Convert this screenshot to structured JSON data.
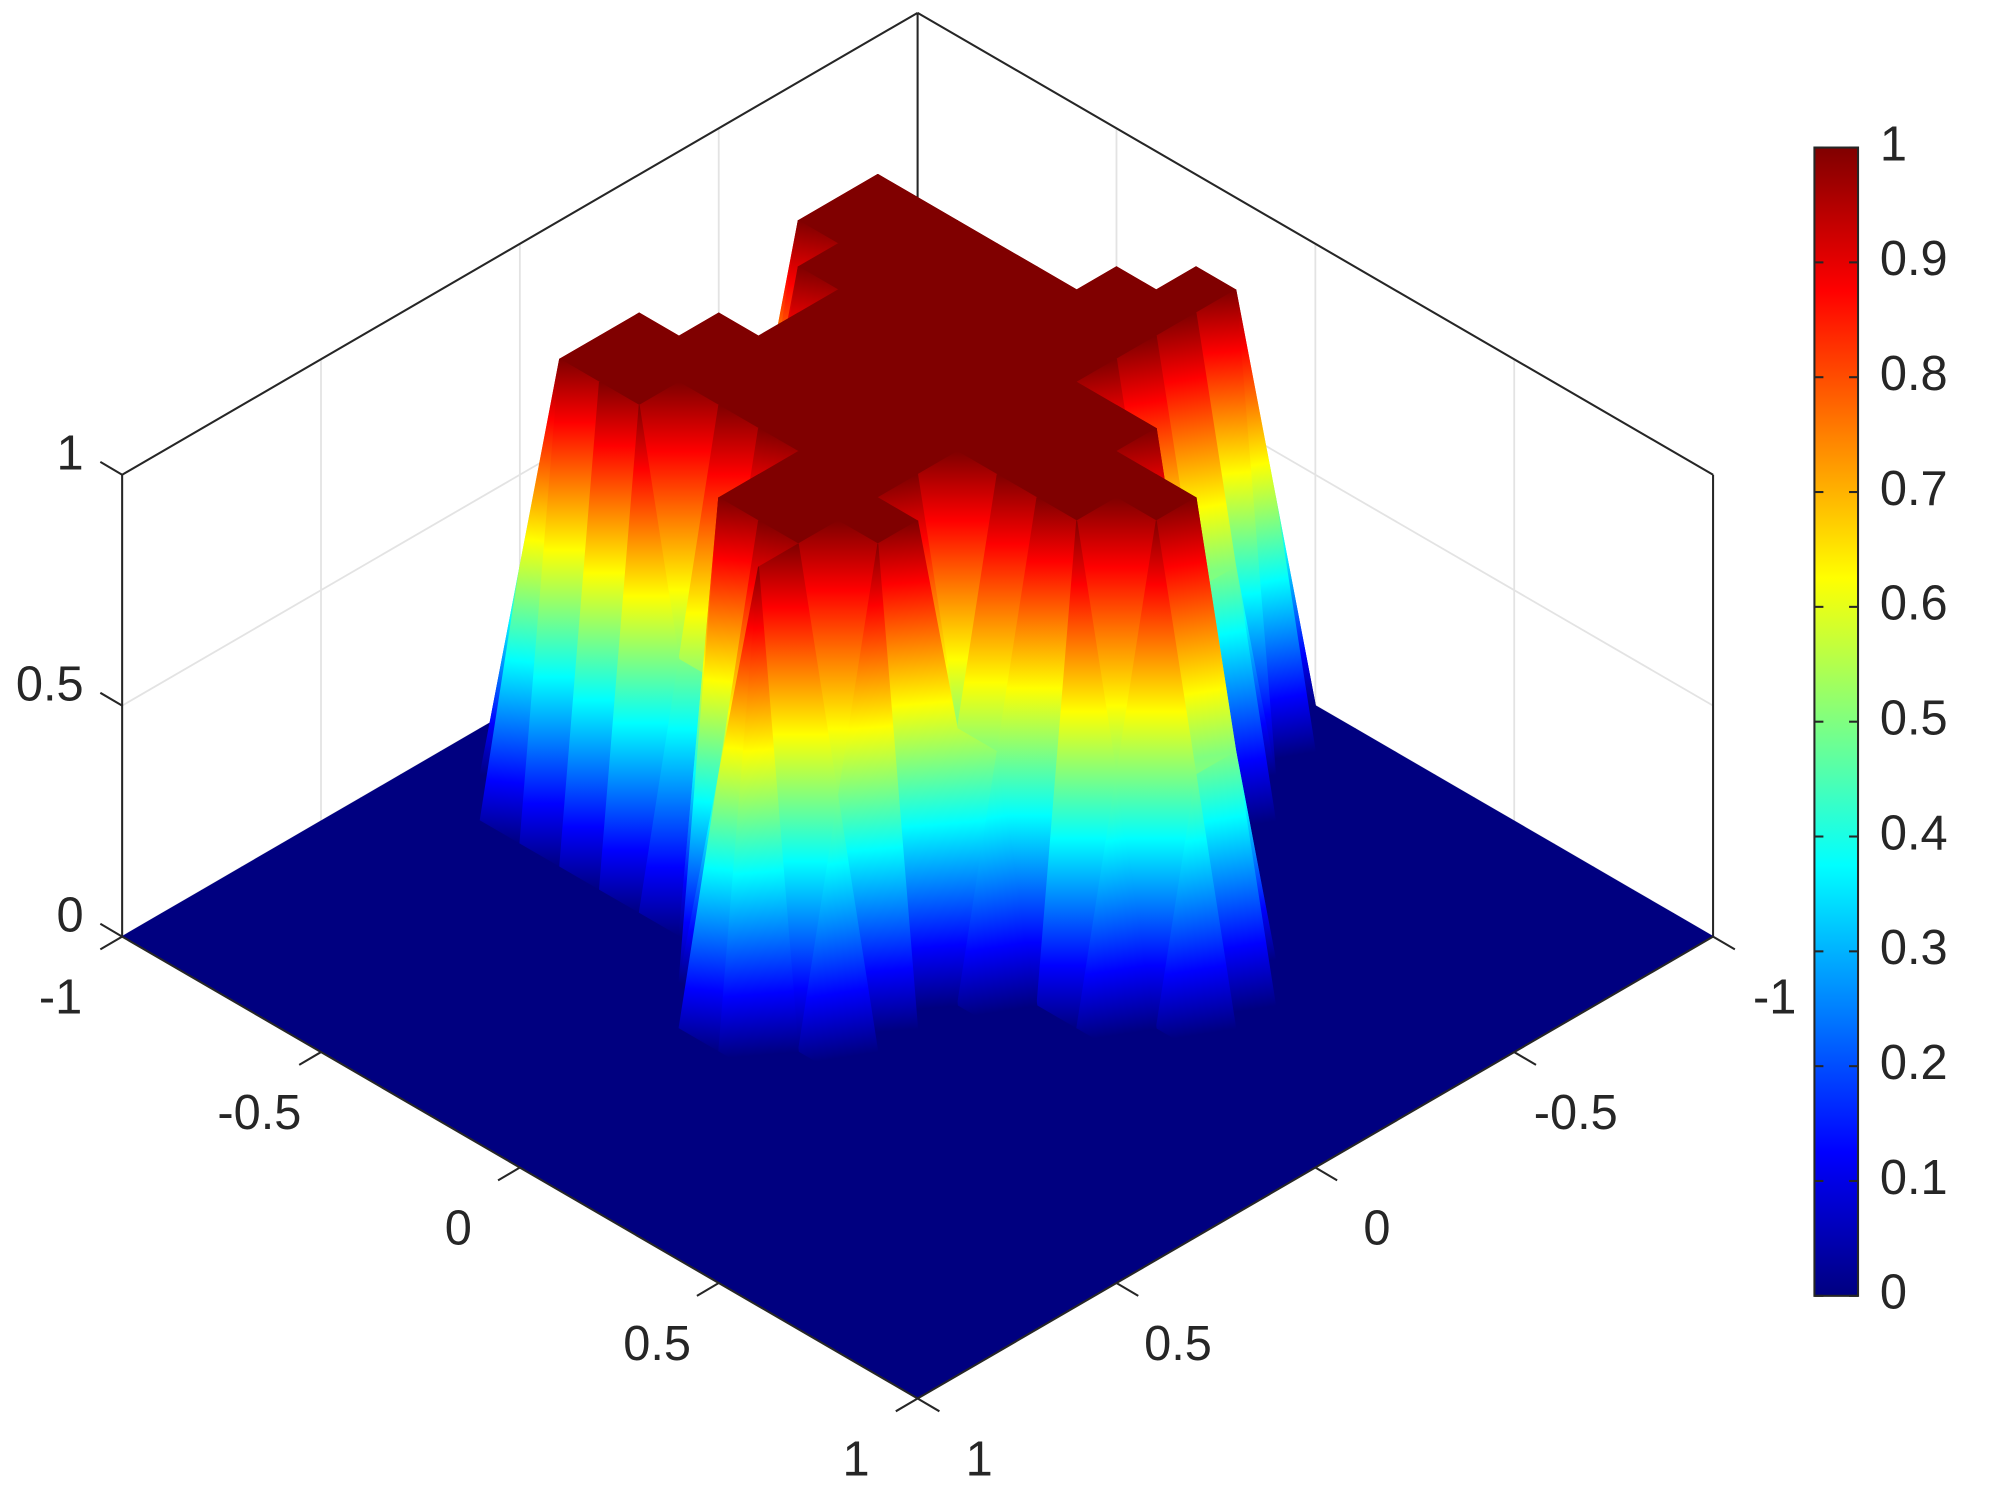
{
  "chart_data": {
    "type": "surface",
    "colormap": "jet",
    "x": [
      -1,
      -0.9,
      -0.8,
      -0.7,
      -0.6,
      -0.5,
      -0.4,
      -0.3,
      -0.2,
      -0.1,
      0,
      0.1,
      0.2,
      0.3,
      0.4,
      0.5,
      0.6,
      0.7,
      0.8,
      0.9,
      1
    ],
    "y": [
      -1,
      -0.9,
      -0.8,
      -0.7,
      -0.6,
      -0.5,
      -0.4,
      -0.3,
      -0.2,
      -0.1,
      0,
      0.1,
      0.2,
      0.3,
      0.4,
      0.5,
      0.6,
      0.7,
      0.8,
      0.9,
      1
    ],
    "z": [
      [
        0,
        0,
        0,
        0,
        0,
        0,
        0,
        0,
        0,
        0,
        0,
        0,
        0,
        0,
        0,
        0,
        0,
        0,
        0,
        0,
        0
      ],
      [
        0,
        0,
        0,
        0,
        0,
        0,
        0,
        0,
        0,
        0.5,
        0.5,
        0,
        0,
        0,
        0,
        0,
        0,
        0,
        0,
        0,
        0
      ],
      [
        0,
        0,
        0,
        0,
        0,
        0,
        0,
        0,
        0.5,
        1,
        1,
        0,
        0,
        0,
        0,
        0,
        0,
        0,
        0,
        0,
        0
      ],
      [
        0,
        0,
        0,
        0,
        0.5,
        0,
        0,
        0.5,
        1,
        1,
        1,
        0.5,
        0,
        0,
        0,
        0,
        0,
        0,
        0,
        0,
        0
      ],
      [
        0,
        0,
        0.5,
        1,
        1,
        1,
        1,
        1,
        1,
        1,
        1,
        0.5,
        0,
        0,
        0,
        0,
        0,
        0,
        0,
        0,
        0
      ],
      [
        0,
        0,
        0.5,
        1,
        1,
        1,
        1,
        1,
        1,
        1,
        1,
        0.5,
        0,
        0,
        0,
        0,
        0,
        0,
        0,
        0,
        0
      ],
      [
        0,
        0,
        0.5,
        1,
        1,
        1,
        1,
        1,
        1,
        1,
        1,
        1,
        1,
        0.5,
        0,
        0,
        0,
        0,
        0,
        0,
        0
      ],
      [
        0,
        0,
        0,
        0.5,
        1,
        1,
        1,
        1,
        1,
        1,
        1,
        1,
        1,
        1,
        1,
        0.5,
        0,
        0,
        0,
        0,
        0
      ],
      [
        0,
        0,
        0,
        0,
        0.5,
        1,
        1,
        1,
        1,
        1,
        1,
        1,
        1,
        1,
        1,
        0.5,
        0,
        0,
        0,
        0,
        0
      ],
      [
        0,
        0,
        0,
        0.5,
        1,
        1,
        1,
        1,
        1,
        1,
        1,
        1,
        1,
        1,
        0.5,
        0,
        0,
        0,
        0,
        0,
        0
      ],
      [
        0,
        0,
        0,
        1,
        1,
        1,
        1,
        1,
        1,
        1,
        1,
        0.5,
        0.5,
        0,
        0,
        0,
        0,
        0,
        0,
        0,
        0
      ],
      [
        0,
        0,
        0.5,
        1,
        1,
        1,
        1,
        1,
        1,
        1,
        1,
        1,
        0,
        0,
        0,
        0,
        0,
        0,
        0,
        0,
        0
      ],
      [
        0,
        0,
        0.5,
        1,
        1,
        1,
        0.5,
        0.5,
        1,
        1,
        1,
        1,
        0,
        0,
        0,
        0,
        0,
        0,
        0,
        0,
        0
      ],
      [
        0,
        0,
        0,
        0,
        0,
        0,
        0,
        0,
        1,
        1,
        1,
        0.5,
        0,
        0,
        0,
        0,
        0,
        0,
        0,
        0,
        0
      ],
      [
        0,
        0,
        0,
        0,
        0,
        0,
        0,
        0,
        0,
        0.5,
        1,
        0,
        0,
        0,
        0,
        0,
        0,
        0,
        0,
        0,
        0
      ],
      [
        0,
        0,
        0,
        0,
        0,
        0,
        0,
        0,
        0,
        0,
        0,
        0,
        0,
        0,
        0,
        0,
        0,
        0,
        0,
        0,
        0
      ],
      [
        0,
        0,
        0,
        0,
        0,
        0,
        0,
        0,
        0,
        0,
        0,
        0,
        0,
        0,
        0,
        0,
        0,
        0,
        0,
        0,
        0
      ],
      [
        0,
        0,
        0,
        0,
        0,
        0,
        0,
        0,
        0,
        0,
        0,
        0,
        0,
        0,
        0,
        0,
        0,
        0,
        0,
        0,
        0
      ],
      [
        0,
        0,
        0,
        0,
        0,
        0,
        0,
        0,
        0,
        0,
        0,
        0,
        0,
        0,
        0,
        0,
        0,
        0,
        0,
        0,
        0
      ],
      [
        0,
        0,
        0,
        0,
        0,
        0,
        0,
        0,
        0,
        0,
        0,
        0,
        0,
        0,
        0,
        0,
        0,
        0,
        0,
        0,
        0
      ],
      [
        0,
        0,
        0,
        0,
        0,
        0,
        0,
        0,
        0,
        0,
        0,
        0,
        0,
        0,
        0,
        0,
        0,
        0,
        0,
        0,
        0
      ]
    ],
    "xlim": [
      -1,
      1
    ],
    "ylim": [
      -1,
      1
    ],
    "zlim": [
      0,
      1
    ],
    "xticks": [
      -1,
      -0.5,
      0,
      0.5,
      1
    ],
    "yticks": [
      -1,
      -0.5,
      0,
      0.5,
      1
    ],
    "zticks": [
      0,
      0.5,
      1
    ],
    "grid": true,
    "colorbar": {
      "lim": [
        0,
        1
      ],
      "ticks": [
        0,
        0.1,
        0.2,
        0.3,
        0.4,
        0.5,
        0.6,
        0.7,
        0.8,
        0.9,
        1
      ]
    }
  }
}
